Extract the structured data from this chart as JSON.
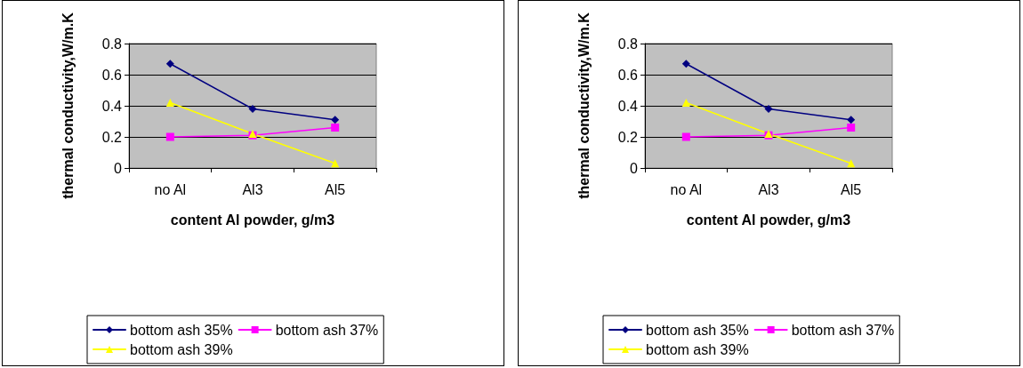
{
  "chart_data": [
    {
      "type": "line",
      "xlabel": "content Al powder, g/m3",
      "ylabel": "thermal conductivity,W/m.K",
      "categories": [
        "no Al",
        "Al3",
        "Al5"
      ],
      "ylim": [
        0,
        0.8
      ],
      "yticks": [
        0,
        0.2,
        0.4,
        0.6,
        0.8
      ],
      "grid": "y",
      "legend": "bottom",
      "series": [
        {
          "name": "bottom ash 35%",
          "color": "#000080",
          "marker": "diamond",
          "values": [
            0.67,
            0.38,
            0.31
          ]
        },
        {
          "name": "bottom ash 37%",
          "color": "#ff00ff",
          "marker": "square",
          "values": [
            0.2,
            0.21,
            0.26
          ]
        },
        {
          "name": "bottom ash 39%",
          "color": "#ffff00",
          "marker": "triangle",
          "values": [
            0.42,
            0.22,
            0.03
          ]
        }
      ]
    },
    {
      "type": "line",
      "xlabel": "content Al powder, g/m3",
      "ylabel": "thermal conductivity,W/m.K",
      "categories": [
        "no Al",
        "Al3",
        "Al5"
      ],
      "ylim": [
        0,
        0.8
      ],
      "yticks": [
        0,
        0.2,
        0.4,
        0.6,
        0.8
      ],
      "grid": "y",
      "legend": "bottom",
      "series": [
        {
          "name": "bottom ash 35%",
          "color": "#000080",
          "marker": "diamond",
          "values": [
            0.67,
            0.38,
            0.31
          ]
        },
        {
          "name": "bottom ash 37%",
          "color": "#ff00ff",
          "marker": "square",
          "values": [
            0.2,
            0.21,
            0.26
          ]
        },
        {
          "name": "bottom ash 39%",
          "color": "#ffff00",
          "marker": "triangle",
          "values": [
            0.42,
            0.22,
            0.03
          ]
        }
      ]
    }
  ]
}
